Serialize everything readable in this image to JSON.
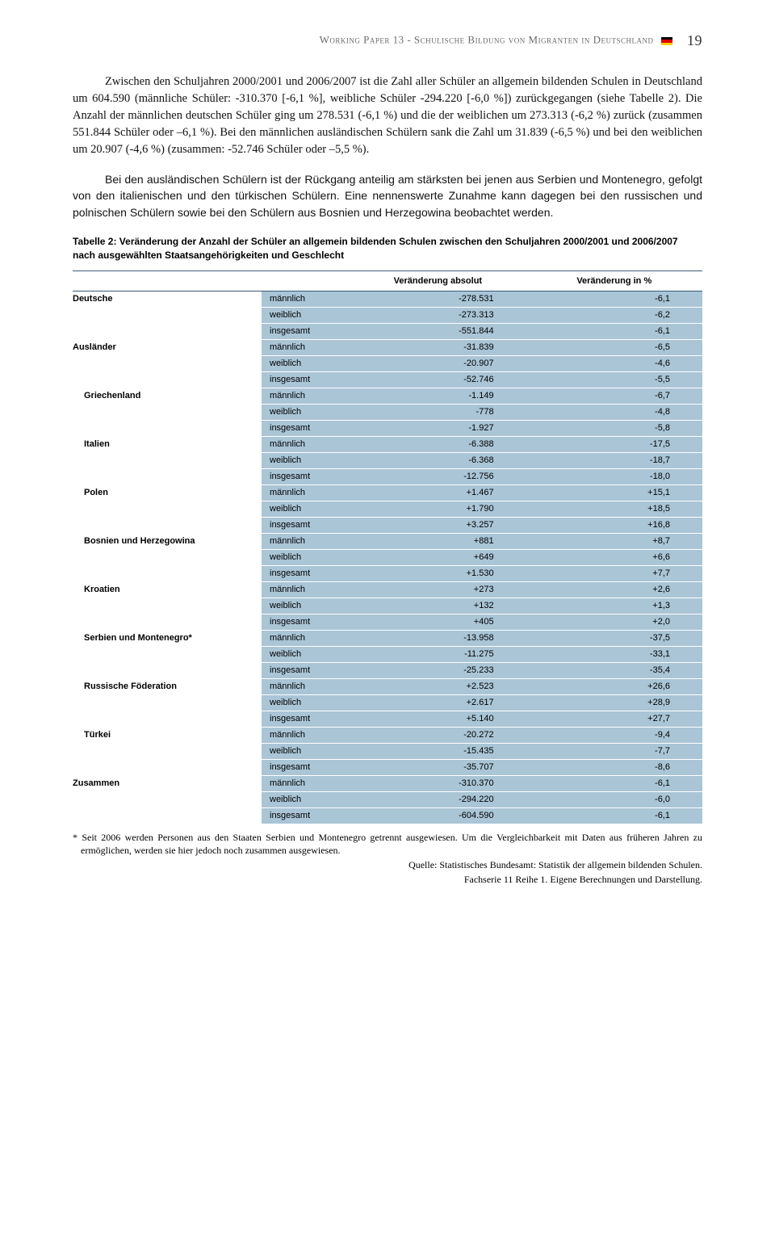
{
  "header": {
    "text": "Working Paper 13 - Schulische Bildung von Migranten in Deutschland",
    "page_number": "19"
  },
  "paragraphs": {
    "p1": "Zwischen den Schuljahren 2000/2001 und 2006/2007 ist die Zahl aller Schüler an allgemein bildenden Schulen in Deutschland um 604.590 (männliche Schüler: -310.370 [-6,1 %], weibliche Schüler -294.220 [-6,0 %]) zurückgegangen (siehe Tabelle 2). Die Anzahl der männlichen deutschen Schüler ging um 278.531 (-6,1 %) und die der weiblichen um 273.313 (-6,2 %) zurück (zusammen 551.844 Schüler oder –6,1 %). Bei den männlichen ausländischen Schülern sank die Zahl um 31.839 (-6,5 %) und bei den weiblichen um 20.907 (-4,6 %) (zusammen: -52.746 Schüler oder –5,5 %).",
    "p2": "Bei den ausländischen Schülern ist der Rückgang anteilig am stärksten bei jenen aus Serbien und Montenegro, gefolgt von den italienischen und den türkischen Schülern. Eine nennenswerte Zunahme kann dagegen bei den russischen und polnischen Schülern sowie bei den Schülern aus Bosnien und Herzegowina beobachtet werden."
  },
  "table": {
    "title": "Tabelle 2: Veränderung der Anzahl der Schüler an allgemein bildenden Schulen zwischen den Schuljahren 2000/2001 und 2006/2007 nach ausgewählten Staatsangehörigkeiten und Geschlecht",
    "headers": {
      "abs": "Veränderung absolut",
      "pct": "Veränderung in %"
    },
    "header_bg": "#ffffff",
    "cell_bg": "#a9c5d6",
    "border_color": "#3a5a78",
    "genders": {
      "m": "männlich",
      "w": "weiblich",
      "i": "insgesamt"
    },
    "groups": [
      {
        "label": "Deutsche",
        "indent": false,
        "rows": [
          {
            "g": "m",
            "abs": "-278.531",
            "pct": "-6,1"
          },
          {
            "g": "w",
            "abs": "-273.313",
            "pct": "-6,2"
          },
          {
            "g": "i",
            "abs": "-551.844",
            "pct": "-6,1"
          }
        ]
      },
      {
        "label": "Ausländer",
        "indent": false,
        "rows": [
          {
            "g": "m",
            "abs": "-31.839",
            "pct": "-6,5"
          },
          {
            "g": "w",
            "abs": "-20.907",
            "pct": "-4,6"
          },
          {
            "g": "i",
            "abs": "-52.746",
            "pct": "-5,5"
          }
        ]
      },
      {
        "label": "Griechenland",
        "indent": true,
        "rows": [
          {
            "g": "m",
            "abs": "-1.149",
            "pct": "-6,7"
          },
          {
            "g": "w",
            "abs": "-778",
            "pct": "-4,8"
          },
          {
            "g": "i",
            "abs": "-1.927",
            "pct": "-5,8"
          }
        ]
      },
      {
        "label": "Italien",
        "indent": true,
        "rows": [
          {
            "g": "m",
            "abs": "-6.388",
            "pct": "-17,5"
          },
          {
            "g": "w",
            "abs": "-6.368",
            "pct": "-18,7"
          },
          {
            "g": "i",
            "abs": "-12.756",
            "pct": "-18,0"
          }
        ]
      },
      {
        "label": "Polen",
        "indent": true,
        "rows": [
          {
            "g": "m",
            "abs": "+1.467",
            "pct": "+15,1"
          },
          {
            "g": "w",
            "abs": "+1.790",
            "pct": "+18,5"
          },
          {
            "g": "i",
            "abs": "+3.257",
            "pct": "+16,8"
          }
        ]
      },
      {
        "label": "Bosnien und Herzegowina",
        "indent": true,
        "rows": [
          {
            "g": "m",
            "abs": "+881",
            "pct": "+8,7"
          },
          {
            "g": "w",
            "abs": "+649",
            "pct": "+6,6"
          },
          {
            "g": "i",
            "abs": "+1.530",
            "pct": "+7,7"
          }
        ]
      },
      {
        "label": "Kroatien",
        "indent": true,
        "rows": [
          {
            "g": "m",
            "abs": "+273",
            "pct": "+2,6"
          },
          {
            "g": "w",
            "abs": "+132",
            "pct": "+1,3"
          },
          {
            "g": "i",
            "abs": "+405",
            "pct": "+2,0"
          }
        ]
      },
      {
        "label": "Serbien und Montenegro*",
        "indent": true,
        "rows": [
          {
            "g": "m",
            "abs": "-13.958",
            "pct": "-37,5"
          },
          {
            "g": "w",
            "abs": "-11.275",
            "pct": "-33,1"
          },
          {
            "g": "i",
            "abs": "-25.233",
            "pct": "-35,4"
          }
        ]
      },
      {
        "label": "Russische Föderation",
        "indent": true,
        "rows": [
          {
            "g": "m",
            "abs": "+2.523",
            "pct": "+26,6"
          },
          {
            "g": "w",
            "abs": "+2.617",
            "pct": "+28,9"
          },
          {
            "g": "i",
            "abs": "+5.140",
            "pct": "+27,7"
          }
        ]
      },
      {
        "label": "Türkei",
        "indent": true,
        "rows": [
          {
            "g": "m",
            "abs": "-20.272",
            "pct": "-9,4"
          },
          {
            "g": "w",
            "abs": "-15.435",
            "pct": "-7,7"
          },
          {
            "g": "i",
            "abs": "-35.707",
            "pct": "-8,6"
          }
        ]
      },
      {
        "label": "Zusammen",
        "indent": false,
        "rows": [
          {
            "g": "m",
            "abs": "-310.370",
            "pct": "-6,1"
          },
          {
            "g": "w",
            "abs": "-294.220",
            "pct": "-6,0"
          },
          {
            "g": "i",
            "abs": "-604.590",
            "pct": "-6,1"
          }
        ]
      }
    ]
  },
  "footnote": "* Seit 2006 werden Personen aus den Staaten Serbien und Montenegro getrennt ausgewiesen. Um die Vergleichbarkeit mit Daten aus früheren Jahren zu ermöglichen, werden sie hier jedoch noch zusammen ausgewiesen.",
  "source1": "Quelle: Statistisches Bundesamt: Statistik der allgemein bildenden Schulen.",
  "source2": "Fachserie 11 Reihe 1. Eigene Berechnungen und Darstellung."
}
